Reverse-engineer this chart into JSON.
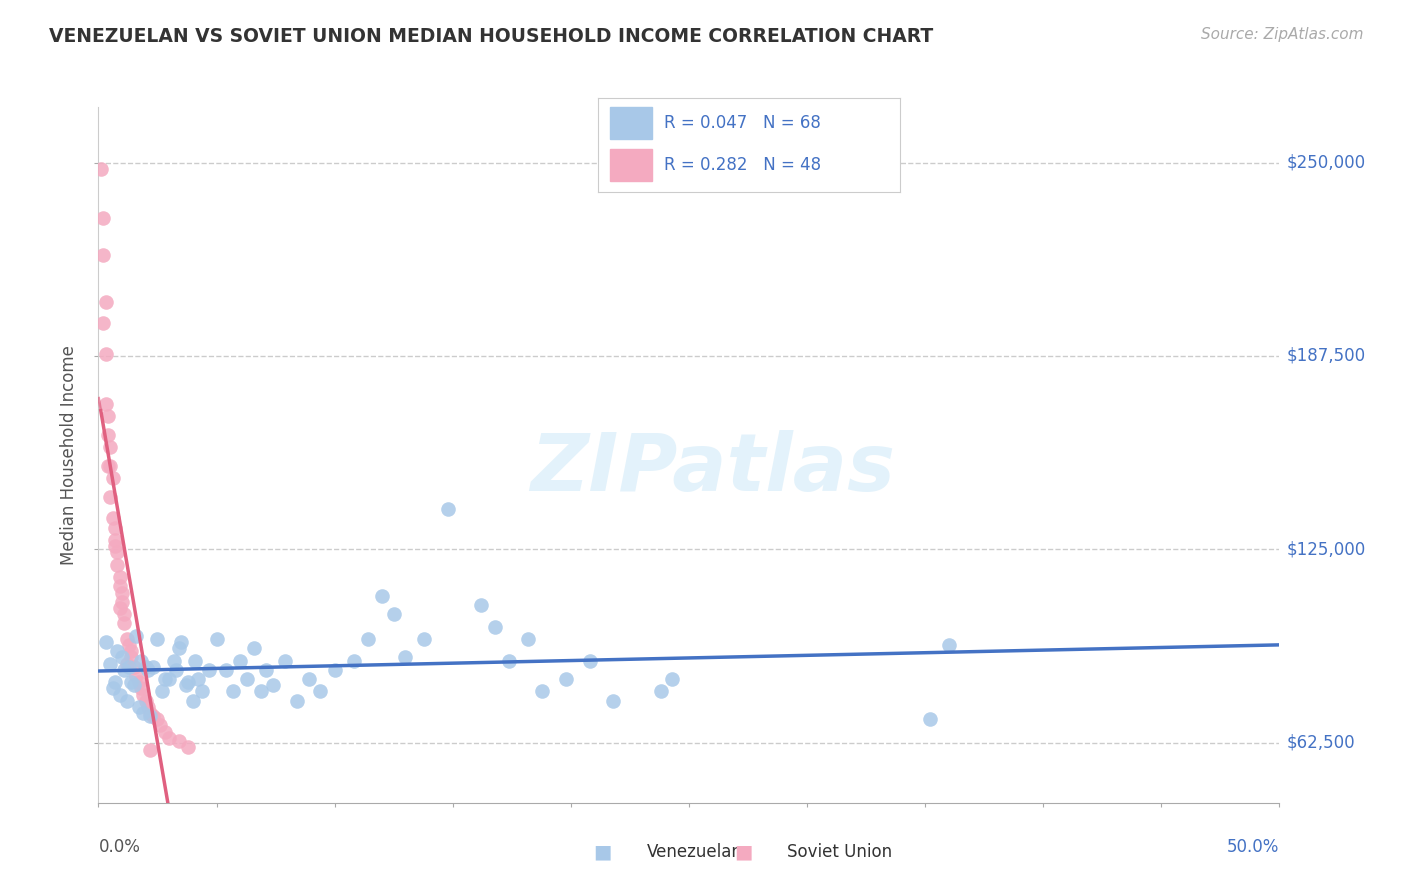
{
  "title": "VENEZUELAN VS SOVIET UNION MEDIAN HOUSEHOLD INCOME CORRELATION CHART",
  "source": "Source: ZipAtlas.com",
  "ylabel": "Median Household Income",
  "xlim": [
    0.0,
    0.5
  ],
  "ylim": [
    43000,
    268000
  ],
  "xtick_labels_left": "0.0%",
  "xtick_labels_right": "50.0%",
  "ytick_positions": [
    62500,
    125000,
    187500,
    250000
  ],
  "ytick_labels": [
    "$62,500",
    "$125,000",
    "$187,500",
    "$250,000"
  ],
  "watermark": "ZIPatlas",
  "title_color": "#333333",
  "title_fontsize": 14,
  "background_color": "#ffffff",
  "scatter_blue_color": "#a8c8e8",
  "scatter_pink_color": "#f4aac0",
  "trendline_blue_color": "#4472c4",
  "trendline_pink_color": "#e06080",
  "grid_color": "#cccccc",
  "legend_blue_fill": "#a8c8e8",
  "legend_pink_fill": "#f4aac0",
  "legend_r1": "R = 0.047",
  "legend_n1": "N = 68",
  "legend_r2": "R = 0.282",
  "legend_n2": "N = 48",
  "legend_text_color": "#4472c4",
  "blue_dots": [
    [
      0.003,
      95000
    ],
    [
      0.005,
      88000
    ],
    [
      0.006,
      80000
    ],
    [
      0.007,
      82000
    ],
    [
      0.008,
      92000
    ],
    [
      0.009,
      78000
    ],
    [
      0.01,
      90000
    ],
    [
      0.011,
      86000
    ],
    [
      0.012,
      76000
    ],
    [
      0.013,
      87000
    ],
    [
      0.014,
      82000
    ],
    [
      0.015,
      81000
    ],
    [
      0.016,
      97000
    ],
    [
      0.017,
      74000
    ],
    [
      0.018,
      89000
    ],
    [
      0.019,
      72000
    ],
    [
      0.02,
      87000
    ],
    [
      0.021,
      86000
    ],
    [
      0.022,
      71000
    ],
    [
      0.023,
      87000
    ],
    [
      0.025,
      96000
    ],
    [
      0.027,
      79000
    ],
    [
      0.028,
      83000
    ],
    [
      0.03,
      83000
    ],
    [
      0.032,
      89000
    ],
    [
      0.033,
      86000
    ],
    [
      0.034,
      93000
    ],
    [
      0.035,
      95000
    ],
    [
      0.037,
      81000
    ],
    [
      0.038,
      82000
    ],
    [
      0.04,
      76000
    ],
    [
      0.041,
      89000
    ],
    [
      0.042,
      83000
    ],
    [
      0.044,
      79000
    ],
    [
      0.047,
      86000
    ],
    [
      0.05,
      96000
    ],
    [
      0.054,
      86000
    ],
    [
      0.057,
      79000
    ],
    [
      0.06,
      89000
    ],
    [
      0.063,
      83000
    ],
    [
      0.066,
      93000
    ],
    [
      0.069,
      79000
    ],
    [
      0.071,
      86000
    ],
    [
      0.074,
      81000
    ],
    [
      0.079,
      89000
    ],
    [
      0.084,
      76000
    ],
    [
      0.089,
      83000
    ],
    [
      0.094,
      79000
    ],
    [
      0.1,
      86000
    ],
    [
      0.108,
      89000
    ],
    [
      0.114,
      96000
    ],
    [
      0.12,
      110000
    ],
    [
      0.125,
      104000
    ],
    [
      0.13,
      90000
    ],
    [
      0.138,
      96000
    ],
    [
      0.148,
      138000
    ],
    [
      0.162,
      107000
    ],
    [
      0.168,
      100000
    ],
    [
      0.174,
      89000
    ],
    [
      0.182,
      96000
    ],
    [
      0.188,
      79000
    ],
    [
      0.198,
      83000
    ],
    [
      0.208,
      89000
    ],
    [
      0.218,
      76000
    ],
    [
      0.238,
      79000
    ],
    [
      0.243,
      83000
    ],
    [
      0.352,
      70000
    ],
    [
      0.36,
      94000
    ]
  ],
  "pink_dots": [
    [
      0.001,
      248000
    ],
    [
      0.002,
      220000
    ],
    [
      0.002,
      198000
    ],
    [
      0.003,
      205000
    ],
    [
      0.003,
      172000
    ],
    [
      0.004,
      162000
    ],
    [
      0.004,
      152000
    ],
    [
      0.005,
      158000
    ],
    [
      0.005,
      142000
    ],
    [
      0.006,
      148000
    ],
    [
      0.006,
      135000
    ],
    [
      0.007,
      132000
    ],
    [
      0.007,
      126000
    ],
    [
      0.008,
      124000
    ],
    [
      0.008,
      120000
    ],
    [
      0.009,
      116000
    ],
    [
      0.009,
      113000
    ],
    [
      0.01,
      111000
    ],
    [
      0.01,
      108000
    ],
    [
      0.011,
      104000
    ],
    [
      0.011,
      101000
    ],
    [
      0.012,
      96000
    ],
    [
      0.013,
      94000
    ],
    [
      0.014,
      92000
    ],
    [
      0.014,
      90000
    ],
    [
      0.015,
      87000
    ],
    [
      0.016,
      84000
    ],
    [
      0.017,
      82000
    ],
    [
      0.018,
      80000
    ],
    [
      0.019,
      78000
    ],
    [
      0.02,
      76000
    ],
    [
      0.021,
      74000
    ],
    [
      0.022,
      72000
    ],
    [
      0.023,
      71000
    ],
    [
      0.025,
      70000
    ],
    [
      0.026,
      68000
    ],
    [
      0.028,
      66000
    ],
    [
      0.03,
      64000
    ],
    [
      0.034,
      63000
    ],
    [
      0.038,
      61000
    ],
    [
      0.002,
      232000
    ],
    [
      0.003,
      188000
    ],
    [
      0.004,
      168000
    ],
    [
      0.005,
      152000
    ],
    [
      0.007,
      128000
    ],
    [
      0.009,
      106000
    ],
    [
      0.012,
      88000
    ],
    [
      0.022,
      60000
    ]
  ]
}
